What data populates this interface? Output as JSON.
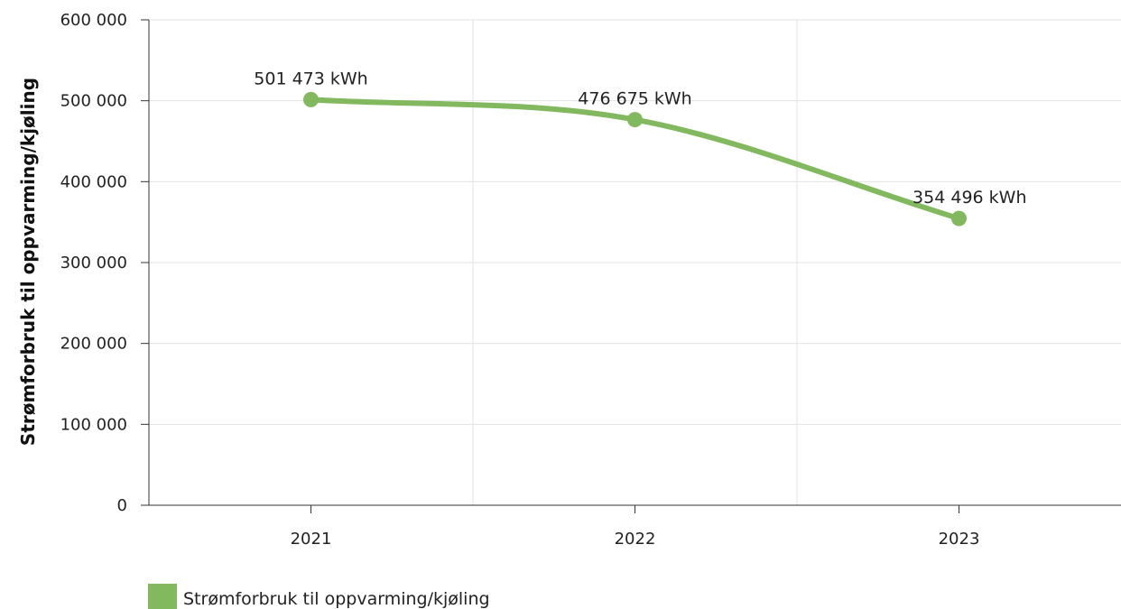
{
  "chart_data": {
    "type": "line",
    "categories": [
      "2021",
      "2022",
      "2023"
    ],
    "series": [
      {
        "name": "Strømforbruk til oppvarming/kjøling",
        "values": [
          501473,
          476675,
          354496
        ],
        "data_labels": [
          "501 473 kWh",
          "476 675 kWh",
          "354 496 kWh"
        ],
        "color": "#82b95f"
      }
    ],
    "ylabel": "Strømforbruk til oppvarming/kjøling",
    "xlabel": "",
    "ylim": [
      0,
      600000
    ],
    "yticks": [
      0,
      100000,
      200000,
      300000,
      400000,
      500000,
      600000
    ],
    "ytick_labels": [
      "0",
      "100 000",
      "200 000",
      "300 000",
      "400 000",
      "500 000",
      "600 000"
    ],
    "grid": true,
    "legend_position": "bottom-left",
    "smooth": true
  }
}
